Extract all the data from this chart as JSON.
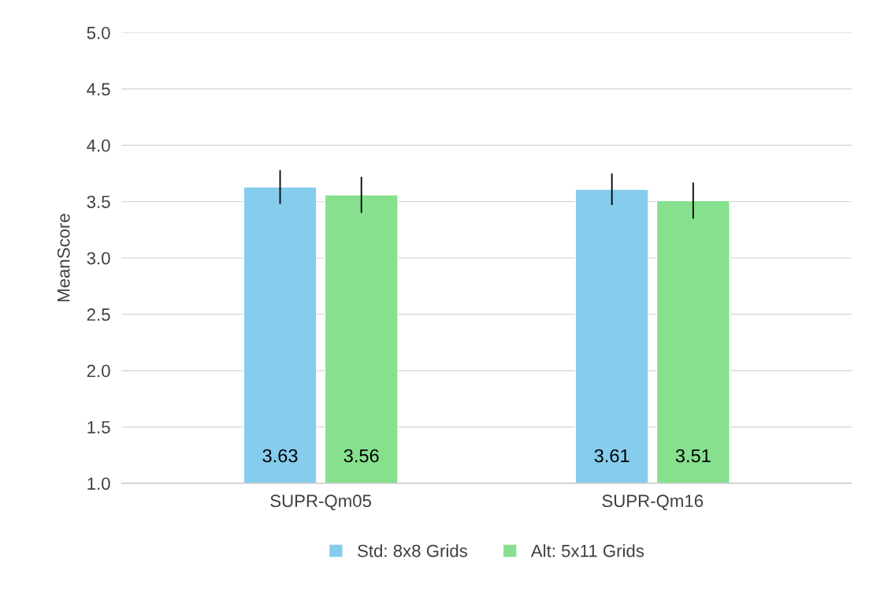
{
  "chart_data": {
    "type": "bar",
    "ylabel": "MeanScore",
    "categories": [
      "SUPR-Qm05",
      "SUPR-Qm16"
    ],
    "series": [
      {
        "name": "Std: 8x8 Grids",
        "color": "#86ccec",
        "values": [
          3.63,
          3.61
        ],
        "errors": [
          0.15,
          0.14
        ]
      },
      {
        "name": "Alt: 5x11 Grids",
        "color": "#86e08e",
        "values": [
          3.56,
          3.51
        ],
        "errors": [
          0.16,
          0.16
        ]
      }
    ],
    "ylim": [
      1.0,
      5.0
    ],
    "yticks": [
      {
        "value": 1.0,
        "label": "1.0"
      },
      {
        "value": 1.5,
        "label": "1.5"
      },
      {
        "value": 2.0,
        "label": "2.0"
      },
      {
        "value": 2.5,
        "label": "2.5"
      },
      {
        "value": 3.0,
        "label": "3.0"
      },
      {
        "value": 3.5,
        "label": "3.5"
      },
      {
        "value": 4.0,
        "label": "4.0"
      },
      {
        "value": 4.5,
        "label": "4.5"
      },
      {
        "value": 5.0,
        "label": "5.0"
      }
    ],
    "grid": "y",
    "legend": "bottom",
    "data_labels": true
  }
}
